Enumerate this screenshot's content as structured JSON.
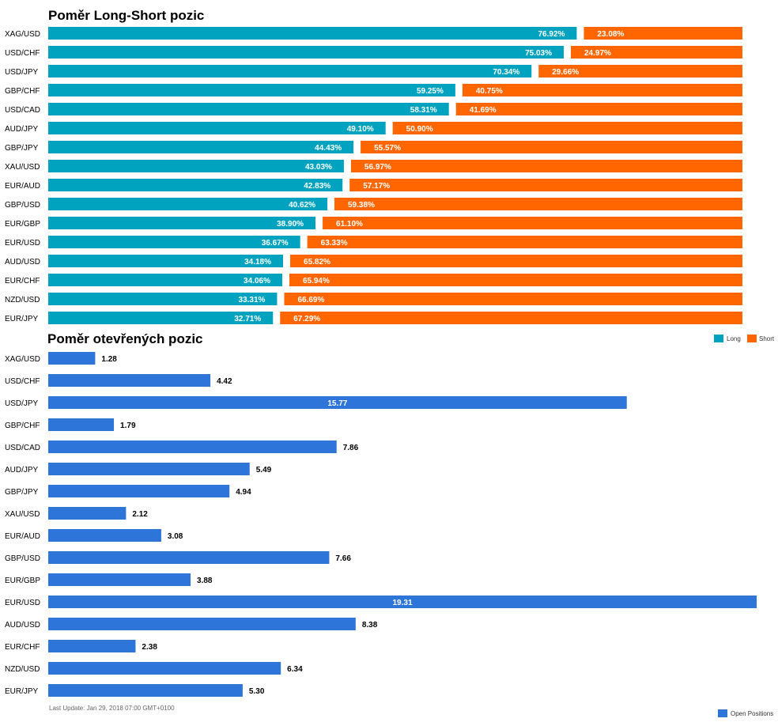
{
  "colors": {
    "long": "#00a3bf",
    "short": "#ff6600",
    "open": "#2e75d9",
    "text": "#000000",
    "footer": "#666666"
  },
  "chart_data": [
    {
      "type": "bar",
      "orientation": "horizontal",
      "stacked": "percent",
      "title": "Poměr Long-Short pozic",
      "categories": [
        "XAG/USD",
        "USD/CHF",
        "USD/JPY",
        "GBP/CHF",
        "USD/CAD",
        "AUD/JPY",
        "GBP/JPY",
        "XAU/USD",
        "EUR/AUD",
        "GBP/USD",
        "EUR/GBP",
        "EUR/USD",
        "AUD/USD",
        "EUR/CHF",
        "NZD/USD",
        "EUR/JPY"
      ],
      "series": [
        {
          "name": "Long",
          "color": "#00a3bf",
          "values": [
            76.92,
            75.03,
            70.34,
            59.25,
            58.31,
            49.1,
            44.43,
            43.03,
            42.83,
            40.62,
            38.9,
            36.67,
            34.18,
            34.06,
            33.31,
            32.71
          ],
          "labels": [
            "76.92%",
            "75.03%",
            "70.34%",
            "59.25%",
            "58.31%",
            "49.10%",
            "44.43%",
            "43.03%",
            "42.83%",
            "40.62%",
            "38.90%",
            "36.67%",
            "34.18%",
            "34.06%",
            "33.31%",
            "32.71%"
          ]
        },
        {
          "name": "Short",
          "color": "#ff6600",
          "values": [
            23.08,
            24.97,
            29.66,
            40.75,
            41.69,
            50.9,
            55.57,
            56.97,
            57.17,
            59.38,
            61.1,
            63.33,
            65.82,
            65.94,
            66.69,
            67.29
          ],
          "labels": [
            "23.08%",
            "24.97%",
            "29.66%",
            "40.75%",
            "41.69%",
            "50.90%",
            "55.57%",
            "56.97%",
            "57.17%",
            "59.38%",
            "61.10%",
            "63.33%",
            "65.82%",
            "65.94%",
            "66.69%",
            "67.29%"
          ]
        }
      ],
      "xlim": [
        0,
        100
      ],
      "legend": "right"
    },
    {
      "type": "bar",
      "orientation": "horizontal",
      "title": "Poměr otevřených pozic",
      "categories": [
        "XAG/USD",
        "USD/CHF",
        "USD/JPY",
        "GBP/CHF",
        "USD/CAD",
        "AUD/JPY",
        "GBP/JPY",
        "XAU/USD",
        "EUR/AUD",
        "GBP/USD",
        "EUR/GBP",
        "EUR/USD",
        "AUD/USD",
        "EUR/CHF",
        "NZD/USD",
        "EUR/JPY"
      ],
      "series": [
        {
          "name": "Open Positions",
          "color": "#2e75d9",
          "values": [
            1.28,
            4.42,
            15.77,
            1.79,
            7.86,
            5.49,
            4.94,
            2.12,
            3.08,
            7.66,
            3.88,
            19.31,
            8.38,
            2.38,
            6.34,
            5.3
          ],
          "labels": [
            "1.28",
            "4.42",
            "15.77",
            "1.79",
            "7.86",
            "5.49",
            "4.94",
            "2.12",
            "3.08",
            "7.66",
            "3.88",
            "19.31",
            "8.38",
            "2.38",
            "6.34",
            "5.30"
          ]
        }
      ],
      "xlim": [
        0,
        19.31
      ],
      "legend": "bottom-right"
    }
  ],
  "footer": {
    "last_update": "Last Update: Jan 29, 2018 07:00 GMT+0100"
  }
}
